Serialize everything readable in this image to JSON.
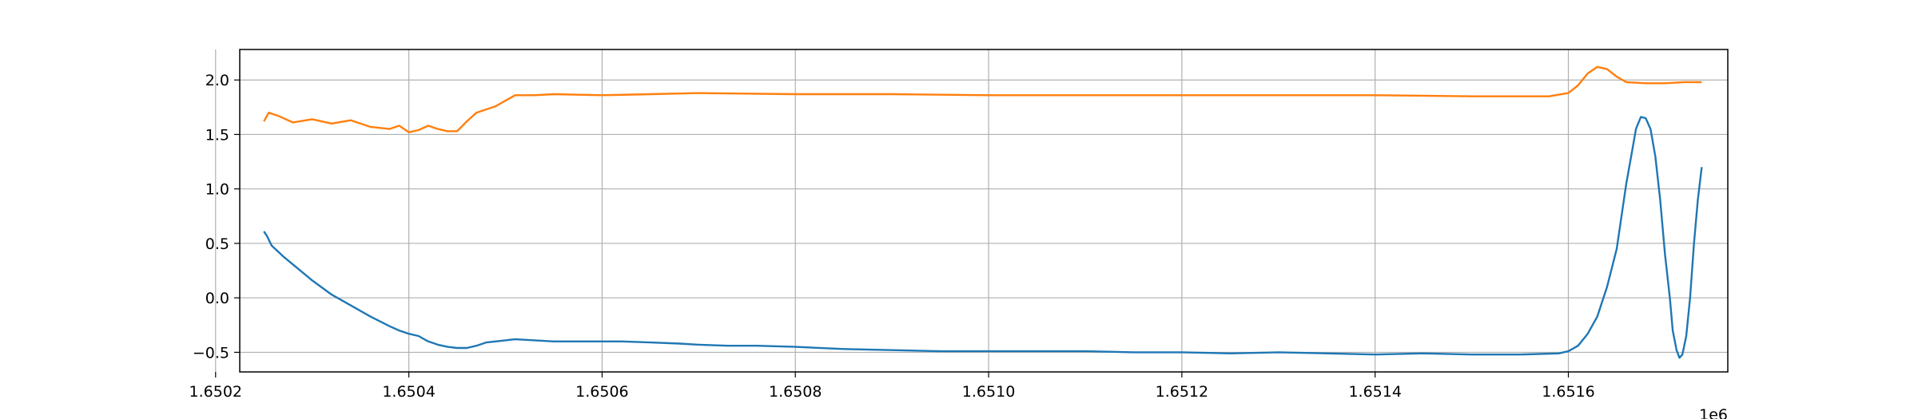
{
  "chart_data": {
    "type": "line",
    "title": "",
    "xlabel": "",
    "ylabel": "",
    "x_offset_label": "1e6",
    "xlim": [
      1.650225,
      1.651765
    ],
    "ylim": [
      -0.68,
      2.28
    ],
    "grid": true,
    "x_ticks": [
      1.6502,
      1.6504,
      1.6506,
      1.6508,
      1.651,
      1.6512,
      1.6514,
      1.6516
    ],
    "x_tick_labels": [
      "1.6502",
      "1.6504",
      "1.6506",
      "1.6508",
      "1.6510",
      "1.6512",
      "1.6514",
      "1.6516"
    ],
    "y_ticks": [
      -0.5,
      0.0,
      0.5,
      1.0,
      1.5,
      2.0
    ],
    "y_tick_labels": [
      "−0.5",
      "0.0",
      "0.5",
      "1.0",
      "1.5",
      "2.0"
    ],
    "series": [
      {
        "color": "#1f77b4",
        "points": [
          [
            1.65025,
            0.61
          ],
          [
            1.650253,
            0.57
          ],
          [
            1.650258,
            0.48
          ],
          [
            1.65027,
            0.38
          ],
          [
            1.650285,
            0.27
          ],
          [
            1.6503,
            0.16
          ],
          [
            1.65032,
            0.03
          ],
          [
            1.65034,
            -0.07
          ],
          [
            1.65036,
            -0.17
          ],
          [
            1.65038,
            -0.26
          ],
          [
            1.65039,
            -0.3
          ],
          [
            1.6504,
            -0.33
          ],
          [
            1.65041,
            -0.35
          ],
          [
            1.65042,
            -0.4
          ],
          [
            1.65043,
            -0.43
          ],
          [
            1.65044,
            -0.45
          ],
          [
            1.65045,
            -0.46
          ],
          [
            1.65046,
            -0.46
          ],
          [
            1.65047,
            -0.44
          ],
          [
            1.65048,
            -0.41
          ],
          [
            1.65049,
            -0.4
          ],
          [
            1.6505,
            -0.39
          ],
          [
            1.65051,
            -0.38
          ],
          [
            1.65053,
            -0.39
          ],
          [
            1.65055,
            -0.4
          ],
          [
            1.65057,
            -0.4
          ],
          [
            1.6506,
            -0.4
          ],
          [
            1.65062,
            -0.4
          ],
          [
            1.65065,
            -0.41
          ],
          [
            1.65068,
            -0.42
          ],
          [
            1.6507,
            -0.43
          ],
          [
            1.65073,
            -0.44
          ],
          [
            1.65076,
            -0.44
          ],
          [
            1.6508,
            -0.45
          ],
          [
            1.65085,
            -0.47
          ],
          [
            1.6509,
            -0.48
          ],
          [
            1.65095,
            -0.49
          ],
          [
            1.651,
            -0.49
          ],
          [
            1.65105,
            -0.49
          ],
          [
            1.6511,
            -0.49
          ],
          [
            1.65115,
            -0.5
          ],
          [
            1.6512,
            -0.5
          ],
          [
            1.65125,
            -0.51
          ],
          [
            1.6513,
            -0.5
          ],
          [
            1.65135,
            -0.51
          ],
          [
            1.6514,
            -0.52
          ],
          [
            1.65145,
            -0.51
          ],
          [
            1.6515,
            -0.52
          ],
          [
            1.65155,
            -0.52
          ],
          [
            1.65159,
            -0.51
          ],
          [
            1.6516,
            -0.49
          ],
          [
            1.65161,
            -0.44
          ],
          [
            1.65162,
            -0.33
          ],
          [
            1.65163,
            -0.17
          ],
          [
            1.65164,
            0.1
          ],
          [
            1.65165,
            0.45
          ],
          [
            1.651655,
            0.75
          ],
          [
            1.65166,
            1.05
          ],
          [
            1.651665,
            1.3
          ],
          [
            1.65167,
            1.55
          ],
          [
            1.651675,
            1.66
          ],
          [
            1.65168,
            1.65
          ],
          [
            1.651685,
            1.55
          ],
          [
            1.65169,
            1.3
          ],
          [
            1.651695,
            0.9
          ],
          [
            1.6517,
            0.4
          ],
          [
            1.651705,
            0.0
          ],
          [
            1.651708,
            -0.3
          ],
          [
            1.651712,
            -0.48
          ],
          [
            1.651715,
            -0.55
          ],
          [
            1.651718,
            -0.52
          ],
          [
            1.651722,
            -0.35
          ],
          [
            1.651726,
            0.0
          ],
          [
            1.65173,
            0.5
          ],
          [
            1.651734,
            0.9
          ],
          [
            1.651738,
            1.2
          ]
        ]
      },
      {
        "color": "#ff7f0e",
        "points": [
          [
            1.65025,
            1.62
          ],
          [
            1.650255,
            1.7
          ],
          [
            1.650265,
            1.67
          ],
          [
            1.65028,
            1.61
          ],
          [
            1.6503,
            1.64
          ],
          [
            1.65032,
            1.6
          ],
          [
            1.65034,
            1.63
          ],
          [
            1.65036,
            1.57
          ],
          [
            1.65038,
            1.55
          ],
          [
            1.65039,
            1.58
          ],
          [
            1.6504,
            1.52
          ],
          [
            1.65041,
            1.54
          ],
          [
            1.65042,
            1.58
          ],
          [
            1.65043,
            1.55
          ],
          [
            1.65044,
            1.53
          ],
          [
            1.65045,
            1.53
          ],
          [
            1.65046,
            1.62
          ],
          [
            1.65047,
            1.7
          ],
          [
            1.65048,
            1.73
          ],
          [
            1.65049,
            1.76
          ],
          [
            1.6505,
            1.81
          ],
          [
            1.65051,
            1.86
          ],
          [
            1.65053,
            1.86
          ],
          [
            1.65055,
            1.87
          ],
          [
            1.6506,
            1.86
          ],
          [
            1.65065,
            1.87
          ],
          [
            1.6507,
            1.88
          ],
          [
            1.6508,
            1.87
          ],
          [
            1.6509,
            1.87
          ],
          [
            1.651,
            1.86
          ],
          [
            1.6511,
            1.86
          ],
          [
            1.6512,
            1.86
          ],
          [
            1.6513,
            1.86
          ],
          [
            1.6514,
            1.86
          ],
          [
            1.6515,
            1.85
          ],
          [
            1.65158,
            1.85
          ],
          [
            1.6516,
            1.88
          ],
          [
            1.65161,
            1.95
          ],
          [
            1.65162,
            2.06
          ],
          [
            1.65163,
            2.12
          ],
          [
            1.65164,
            2.1
          ],
          [
            1.65165,
            2.03
          ],
          [
            1.65166,
            1.98
          ],
          [
            1.65168,
            1.97
          ],
          [
            1.6517,
            1.97
          ],
          [
            1.65172,
            1.98
          ],
          [
            1.651738,
            1.98
          ]
        ]
      }
    ]
  }
}
